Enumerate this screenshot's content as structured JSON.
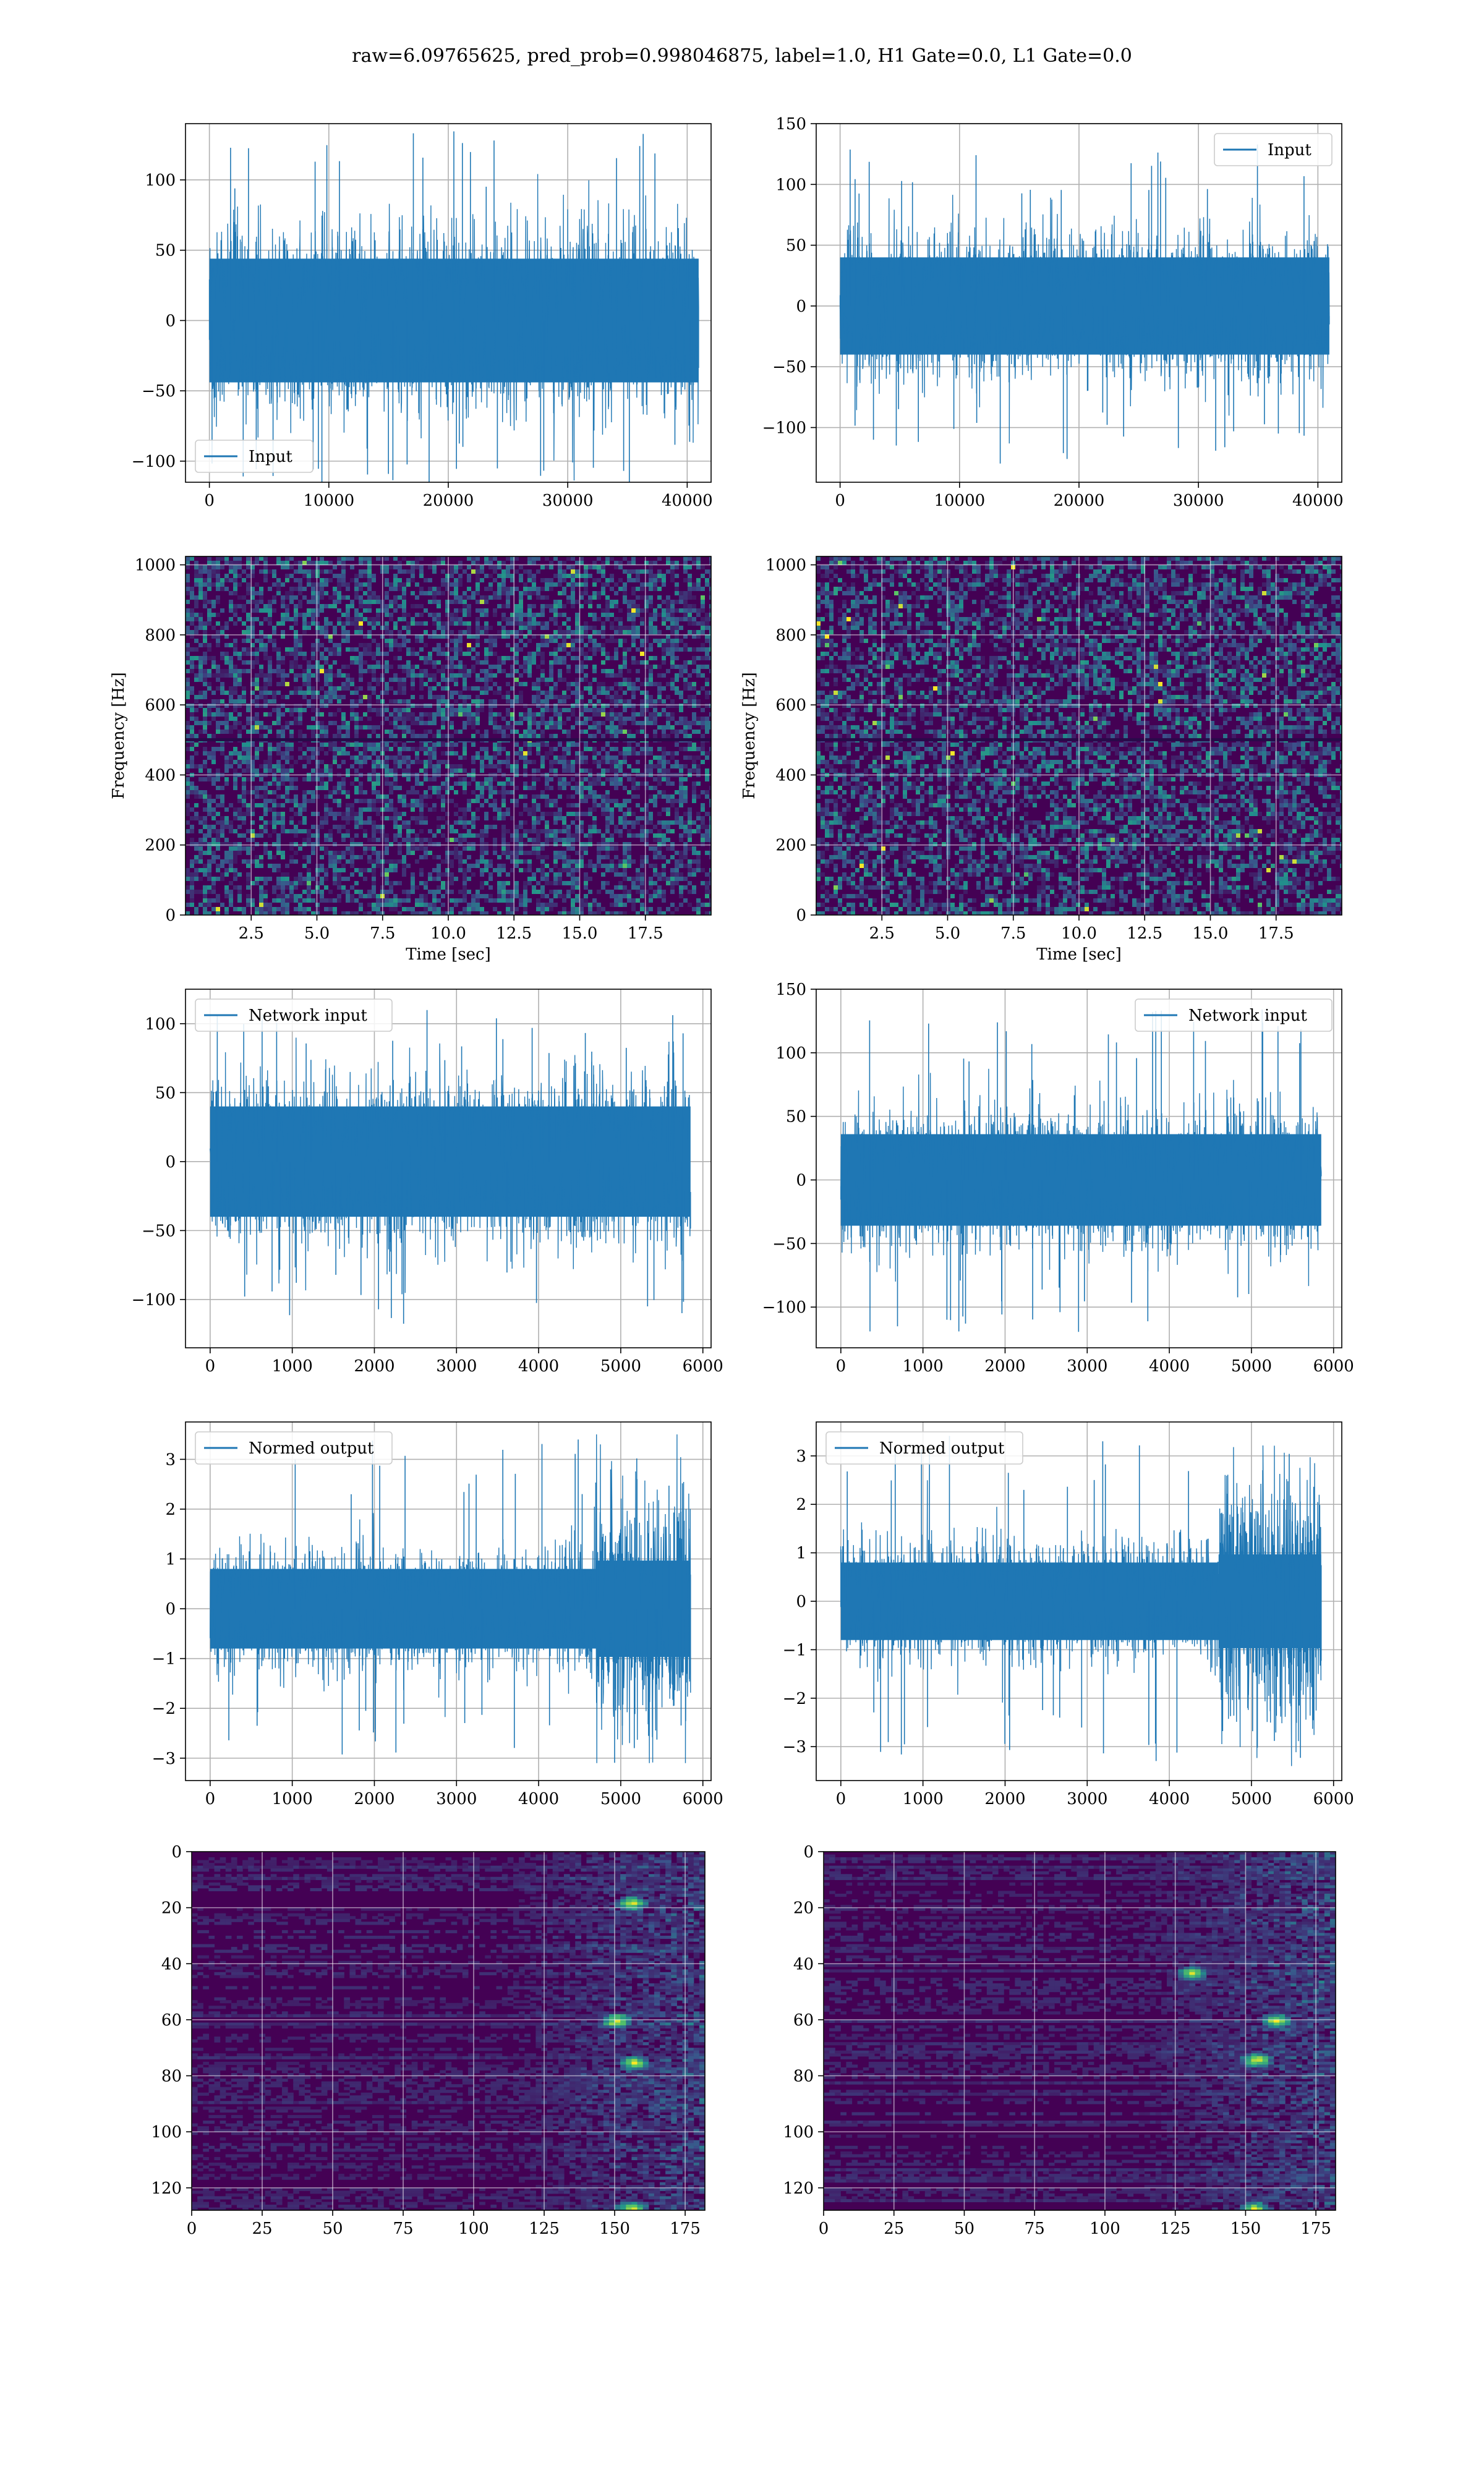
{
  "figure": {
    "title": "raw=6.09765625, pred_prob=0.998046875, label=1.0, H1 Gate=0.0, L1 Gate=0.0",
    "colors": {
      "line": "#1f77b4",
      "heat_low": "#440154",
      "heat_high": "#fde725",
      "grid": "#b0b0b0"
    }
  },
  "chart_data": [
    {
      "id": "input-h1",
      "type": "line",
      "legend": "Input",
      "legend_loc": "lower-left",
      "grid": true,
      "xlim": [
        -2000,
        42000
      ],
      "xticks": [
        0,
        10000,
        20000,
        30000,
        40000
      ],
      "xtick_labels": [
        "0",
        "10000",
        "20000",
        "30000",
        "40000"
      ],
      "ylim": [
        -115,
        140
      ],
      "yticks": [
        -100,
        -50,
        0,
        50,
        100
      ],
      "ytick_labels": [
        "−100",
        "−50",
        "0",
        "50",
        "100"
      ],
      "series": [
        {
          "name": "Input",
          "x_range": [
            0,
            40960
          ],
          "typical_range": [
            -55,
            55
          ],
          "min": -125,
          "max": 135
        }
      ]
    },
    {
      "id": "input-l1",
      "type": "line",
      "legend": "Input",
      "legend_loc": "upper-right",
      "grid": true,
      "xlim": [
        -2000,
        42000
      ],
      "xticks": [
        0,
        10000,
        20000,
        30000,
        40000
      ],
      "xtick_labels": [
        "0",
        "10000",
        "20000",
        "30000",
        "40000"
      ],
      "ylim": [
        -145,
        150
      ],
      "yticks": [
        -100,
        -50,
        0,
        50,
        100,
        150
      ],
      "ytick_labels": [
        "−100",
        "−50",
        "0",
        "50",
        "100",
        "150"
      ],
      "series": [
        {
          "name": "Input",
          "x_range": [
            0,
            40960
          ],
          "typical_range": [
            -50,
            50
          ],
          "min": -130,
          "max": 135
        }
      ]
    },
    {
      "id": "spec-h1",
      "type": "heatmap",
      "grid": true,
      "xlabel": "Time [sec]",
      "ylabel": "Frequency [Hz]",
      "xlim": [
        0,
        20
      ],
      "xticks": [
        2.5,
        5.0,
        7.5,
        10.0,
        12.5,
        15.0,
        17.5
      ],
      "xtick_labels": [
        "2.5",
        "5.0",
        "7.5",
        "10.0",
        "12.5",
        "15.0",
        "17.5"
      ],
      "ylim": [
        0,
        1024
      ],
      "yticks": [
        0,
        200,
        400,
        600,
        800,
        1000
      ],
      "ytick_labels": [
        "0",
        "200",
        "400",
        "600",
        "800",
        "1000"
      ]
    },
    {
      "id": "spec-l1",
      "type": "heatmap",
      "grid": true,
      "xlabel": "Time [sec]",
      "ylabel": "Frequency [Hz]",
      "xlim": [
        0,
        20
      ],
      "xticks": [
        2.5,
        5.0,
        7.5,
        10.0,
        12.5,
        15.0,
        17.5
      ],
      "xtick_labels": [
        "2.5",
        "5.0",
        "7.5",
        "10.0",
        "12.5",
        "15.0",
        "17.5"
      ],
      "ylim": [
        0,
        1024
      ],
      "yticks": [
        0,
        200,
        400,
        600,
        800,
        1000
      ],
      "ytick_labels": [
        "0",
        "200",
        "400",
        "600",
        "800",
        "1000"
      ]
    },
    {
      "id": "net-h1",
      "type": "line",
      "legend": "Network input",
      "legend_loc": "upper-left",
      "grid": true,
      "xlim": [
        -300,
        6100
      ],
      "xticks": [
        0,
        1000,
        2000,
        3000,
        4000,
        5000,
        6000
      ],
      "xtick_labels": [
        "0",
        "1000",
        "2000",
        "3000",
        "4000",
        "5000",
        "6000"
      ],
      "ylim": [
        -135,
        125
      ],
      "yticks": [
        -100,
        -50,
        0,
        50,
        100
      ],
      "ytick_labels": [
        "−100",
        "−50",
        "0",
        "50",
        "100"
      ],
      "series": [
        {
          "name": "Network input",
          "x_range": [
            0,
            5850
          ],
          "typical_range": [
            -50,
            50
          ],
          "min": -120,
          "max": 110
        }
      ]
    },
    {
      "id": "net-l1",
      "type": "line",
      "legend": "Network input",
      "legend_loc": "upper-right",
      "grid": true,
      "xlim": [
        -300,
        6100
      ],
      "xticks": [
        0,
        1000,
        2000,
        3000,
        4000,
        5000,
        6000
      ],
      "xtick_labels": [
        "0",
        "1000",
        "2000",
        "3000",
        "4000",
        "5000",
        "6000"
      ],
      "ylim": [
        -132,
        150
      ],
      "yticks": [
        -100,
        -50,
        0,
        50,
        100,
        150
      ],
      "ytick_labels": [
        "−100",
        "−50",
        "0",
        "50",
        "100",
        "150"
      ],
      "series": [
        {
          "name": "Network input",
          "x_range": [
            0,
            5850
          ],
          "typical_range": [
            -45,
            45
          ],
          "min": -120,
          "max": 140
        }
      ]
    },
    {
      "id": "norm-h1",
      "type": "line",
      "legend": "Normed output",
      "legend_loc": "upper-left",
      "grid": true,
      "xlim": [
        -300,
        6100
      ],
      "xticks": [
        0,
        1000,
        2000,
        3000,
        4000,
        5000,
        6000
      ],
      "xtick_labels": [
        "0",
        "1000",
        "2000",
        "3000",
        "4000",
        "5000",
        "6000"
      ],
      "ylim": [
        -3.45,
        3.75
      ],
      "yticks": [
        -3,
        -2,
        -1,
        0,
        1,
        2,
        3
      ],
      "ytick_labels": [
        "−3",
        "−2",
        "−1",
        "0",
        "1",
        "2",
        "3"
      ],
      "series": [
        {
          "name": "Normed output",
          "x_range": [
            0,
            5850
          ],
          "typical_range": [
            -1,
            1
          ],
          "burst_start": 4700,
          "burst_range": [
            -2.2,
            2.2
          ],
          "min": -3.1,
          "max": 3.5
        }
      ]
    },
    {
      "id": "norm-l1",
      "type": "line",
      "legend": "Normed output",
      "legend_loc": "upper-left",
      "grid": true,
      "xlim": [
        -300,
        6100
      ],
      "xticks": [
        0,
        1000,
        2000,
        3000,
        4000,
        5000,
        6000
      ],
      "xtick_labels": [
        "0",
        "1000",
        "2000",
        "3000",
        "4000",
        "5000",
        "6000"
      ],
      "ylim": [
        -3.7,
        3.7
      ],
      "yticks": [
        -3,
        -2,
        -1,
        0,
        1,
        2,
        3
      ],
      "ytick_labels": [
        "−3",
        "−2",
        "−1",
        "0",
        "1",
        "2",
        "3"
      ],
      "series": [
        {
          "name": "Normed output",
          "x_range": [
            0,
            5850
          ],
          "typical_range": [
            -1,
            1
          ],
          "burst_start": 4600,
          "burst_range": [
            -2.2,
            2.2
          ],
          "min": -3.4,
          "max": 3.5
        }
      ]
    },
    {
      "id": "heat-h1",
      "type": "heatmap",
      "grid": true,
      "y_inverted": true,
      "xlim": [
        0,
        182
      ],
      "xticks": [
        0,
        25,
        50,
        75,
        100,
        125,
        150,
        175
      ],
      "xtick_labels": [
        "0",
        "25",
        "50",
        "75",
        "100",
        "125",
        "150",
        "175"
      ],
      "ylim": [
        128,
        0
      ],
      "yticks": [
        0,
        20,
        40,
        60,
        80,
        100,
        120
      ],
      "ytick_labels": [
        "0",
        "20",
        "40",
        "60",
        "80",
        "100",
        "120"
      ],
      "hot_spots": [
        [
          155,
          18
        ],
        [
          156,
          75
        ],
        [
          155,
          127
        ],
        [
          150,
          60
        ]
      ]
    },
    {
      "id": "heat-l1",
      "type": "heatmap",
      "grid": true,
      "y_inverted": true,
      "xlim": [
        0,
        182
      ],
      "xticks": [
        0,
        25,
        50,
        75,
        100,
        125,
        150,
        175
      ],
      "xtick_labels": [
        "0",
        "25",
        "50",
        "75",
        "100",
        "125",
        "150",
        "175"
      ],
      "ylim": [
        128,
        0
      ],
      "yticks": [
        0,
        20,
        40,
        60,
        80,
        100,
        120
      ],
      "ytick_labels": [
        "0",
        "20",
        "40",
        "60",
        "80",
        "100",
        "120"
      ],
      "hot_spots": [
        [
          153,
          74
        ],
        [
          152,
          127
        ],
        [
          160,
          60
        ],
        [
          130,
          43
        ]
      ]
    }
  ]
}
